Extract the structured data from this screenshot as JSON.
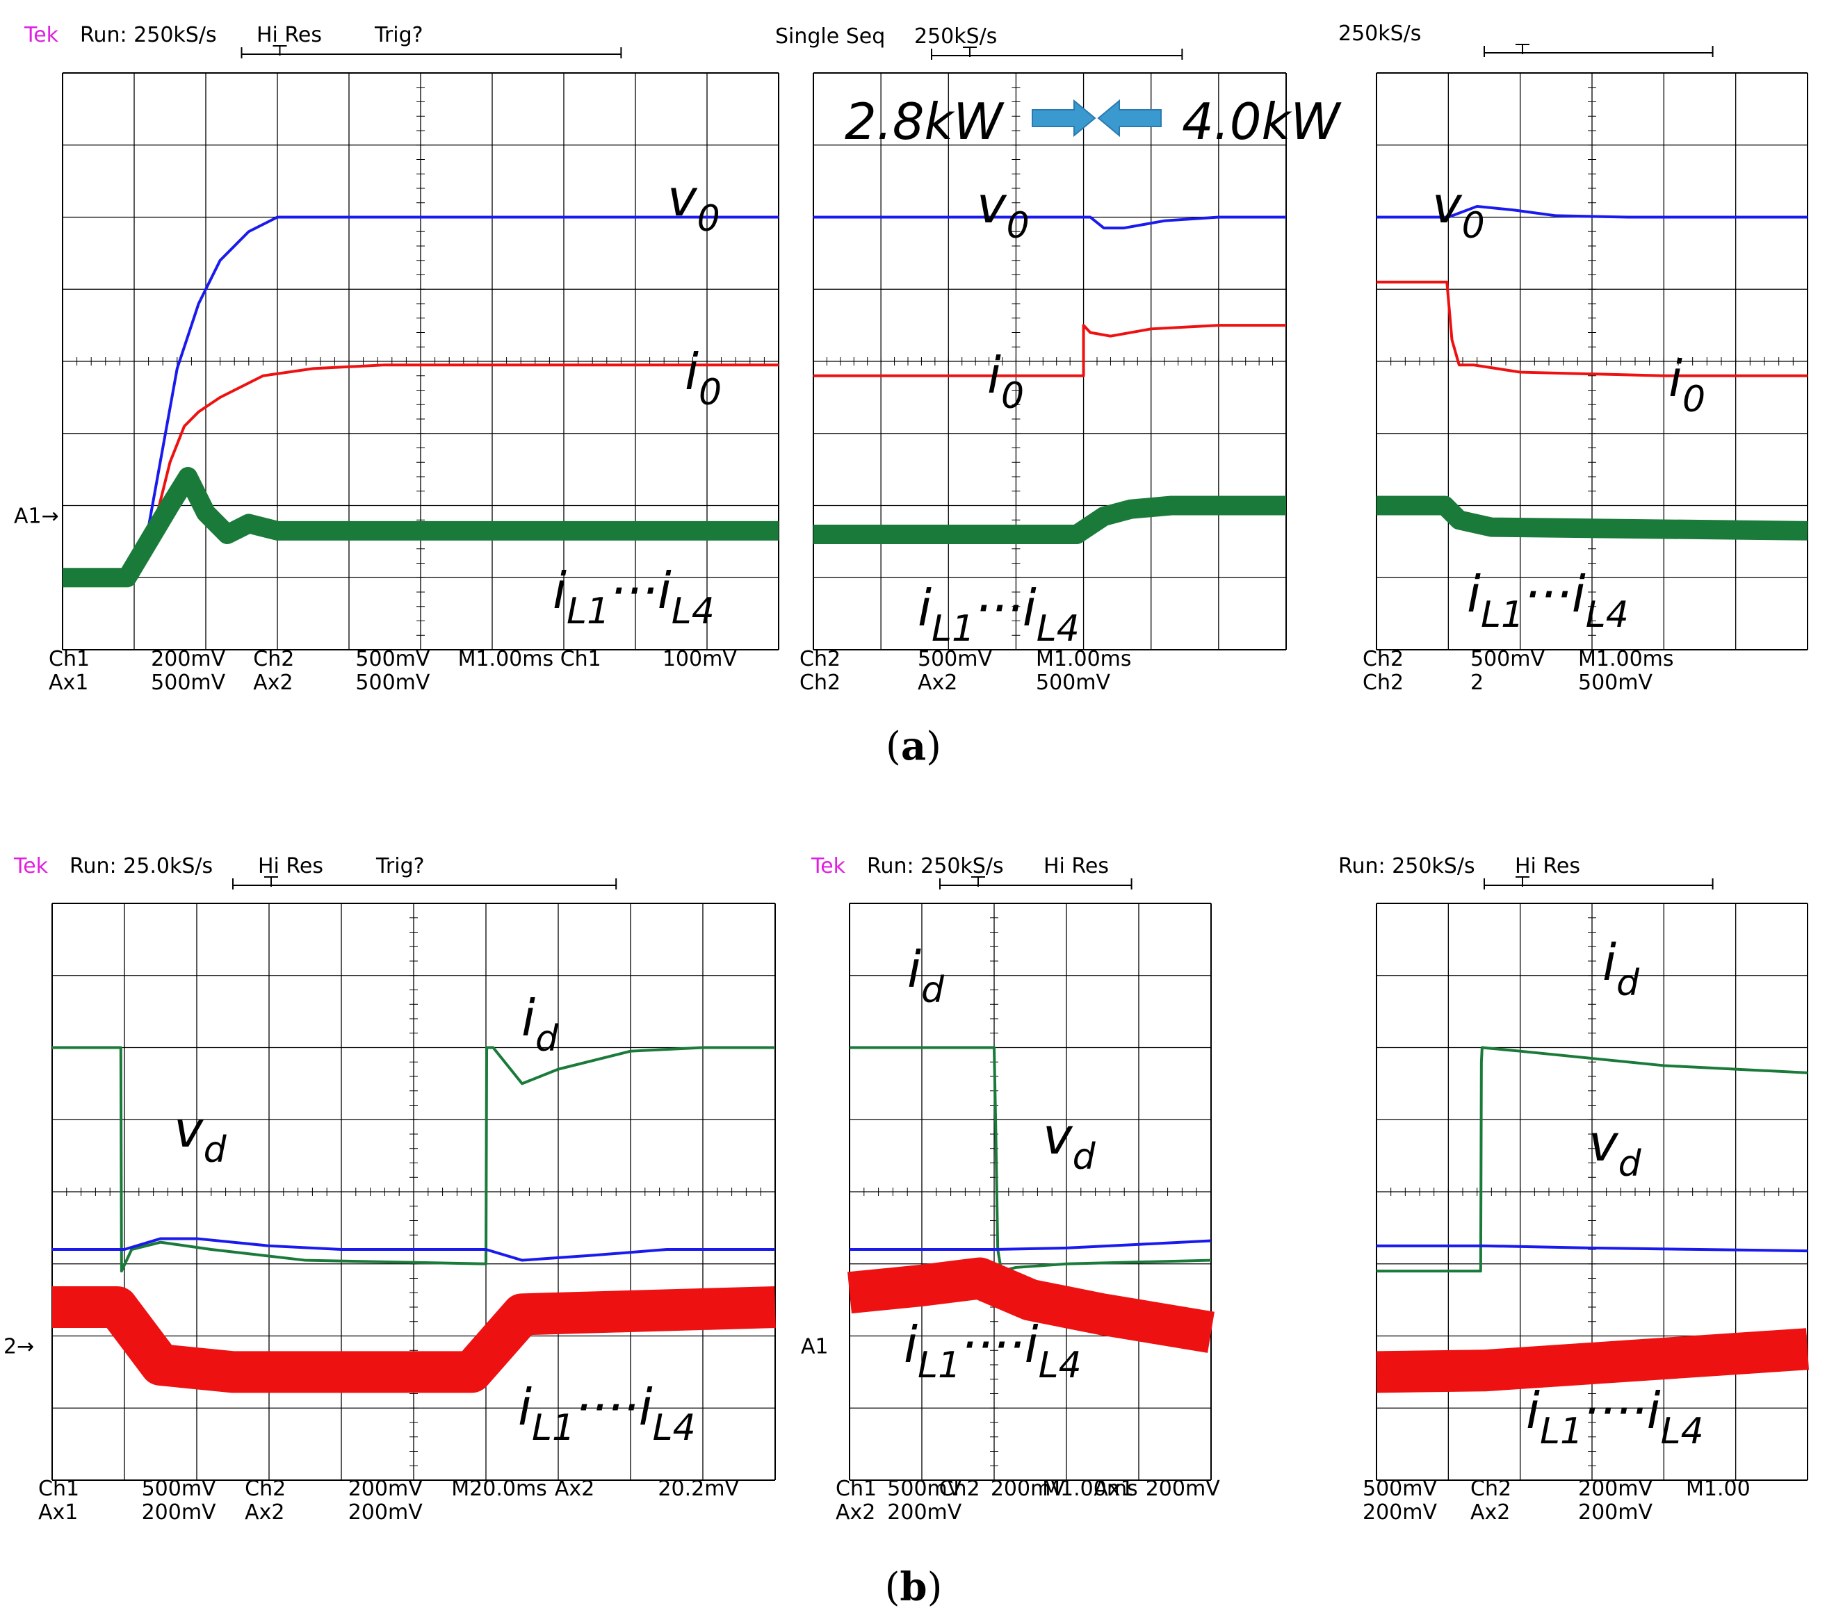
{
  "colors": {
    "blue": "#1a1aee",
    "red": "#ee1111",
    "green": "#1a7a3a",
    "green_light": "#1aaa4a",
    "black": "#000000",
    "magenta": "#e020e0",
    "cyan": "#00d0e0",
    "dark_blue": "#2a2a9a"
  },
  "captions": {
    "a": "a",
    "b": "b"
  },
  "power_labels": {
    "left": "2.8kW",
    "right": "4.0kW"
  },
  "panels": [
    {
      "id": "a1",
      "header": {
        "tek": "Tek",
        "run": "Run: 250kS/s",
        "mode": "Hi Res",
        "trig": "Trig?"
      },
      "footer": [
        {
          "text": "Ch1",
          "color": "blue"
        },
        {
          "text": "200mV",
          "color": "blue"
        },
        {
          "text": "Ch2",
          "color": "green_light"
        },
        {
          "text": "500mV",
          "color": "green_light"
        },
        {
          "text": "M1.00ms",
          "color": "black"
        },
        {
          "text": "Ch1",
          "color": "black"
        },
        {
          "text": "100mV",
          "color": "black"
        },
        {
          "text": "Ax1",
          "color": "red"
        },
        {
          "text": "500mV",
          "color": "red"
        },
        {
          "text": "Ax2",
          "color": "black"
        },
        {
          "text": "500mV",
          "color": "black"
        }
      ],
      "marker": "A1→",
      "labels": {
        "v": "v",
        "v_sub": "0",
        "i": "i",
        "i_sub": "0",
        "il": "i",
        "il_sub1": "L1",
        "dots": "···",
        "il2": "i",
        "il_sub2": "L4"
      }
    },
    {
      "id": "a2",
      "header": {
        "run": "Single Seq",
        "rate": "250kS/s"
      },
      "footer": [
        {
          "text": "Ch2",
          "color": "green_light"
        },
        {
          "text": "500mV",
          "color": "green_light"
        },
        {
          "text": "M1.00ms",
          "color": "black"
        },
        {
          "text": "Ch2",
          "color": "green_light"
        },
        {
          "text": "Ax2",
          "color": "black"
        },
        {
          "text": "500mV",
          "color": "black"
        }
      ],
      "labels": {
        "v": "v",
        "v_sub": "0",
        "i": "i",
        "i_sub": "0",
        "il": "i",
        "il_sub1": "L1",
        "dots": "···",
        "il2": "i",
        "il_sub2": "L4"
      }
    },
    {
      "id": "a3",
      "header": {
        "rate": "250kS/s"
      },
      "footer": [
        {
          "text": "Ch2",
          "color": "green_light"
        },
        {
          "text": "500mV",
          "color": "green_light"
        },
        {
          "text": "M1.00ms",
          "color": "black"
        },
        {
          "text": "Ch2",
          "color": "green_light"
        },
        {
          "text": "2",
          "color": "black"
        },
        {
          "text": "500mV",
          "color": "black"
        }
      ],
      "labels": {
        "v": "v",
        "v_sub": "0",
        "i": "i",
        "i_sub": "0",
        "il": "i",
        "il_sub1": "L1",
        "dots": "···",
        "il2": "i",
        "il_sub2": "L4"
      }
    },
    {
      "id": "b1",
      "header": {
        "tek": "Tek",
        "run": "Run: 25.0kS/s",
        "mode": "Hi Res",
        "trig": "Trig?"
      },
      "footer": [
        {
          "text": "Ch1",
          "color": "blue"
        },
        {
          "text": "500mV",
          "color": "blue"
        },
        {
          "text": "Ch2",
          "color": "green_light"
        },
        {
          "text": "200mV",
          "color": "green_light"
        },
        {
          "text": "M20.0ms",
          "color": "black"
        },
        {
          "text": "Ax2",
          "color": "cyan"
        },
        {
          "text": "20.2mV",
          "color": "black"
        },
        {
          "text": "Ax1",
          "color": "red"
        },
        {
          "text": "200mV",
          "color": "red"
        },
        {
          "text": "Ax2",
          "color": "dark_blue"
        },
        {
          "text": "200mV",
          "color": "dark_blue"
        }
      ],
      "marker": "2→",
      "labels": {
        "id": "i",
        "id_sub": "d",
        "vd": "v",
        "vd_sub": "d",
        "il": "i",
        "il_sub1": "L1",
        "dots": "····",
        "il2": "i",
        "il_sub2": "L4"
      }
    },
    {
      "id": "b2",
      "header": {
        "tek": "Tek",
        "run": "Run: 250kS/s",
        "mode": "Hi Res"
      },
      "footer": [
        {
          "text": "Ch1",
          "color": "blue"
        },
        {
          "text": "500mV",
          "color": "blue"
        },
        {
          "text": "Ch2",
          "color": "green_light"
        },
        {
          "text": "200mV",
          "color": "green_light"
        },
        {
          "text": "M1.00ms",
          "color": "black"
        },
        {
          "text": "Ax1",
          "color": "red"
        },
        {
          "text": "200mV",
          "color": "red"
        },
        {
          "text": "Ax2",
          "color": "dark_blue"
        },
        {
          "text": "200mV",
          "color": "dark_blue"
        }
      ],
      "marker": "A1",
      "labels": {
        "id": "i",
        "id_sub": "d",
        "vd": "v",
        "vd_sub": "d",
        "il": "i",
        "il_sub1": "L1",
        "dots": "····",
        "il2": "i",
        "il_sub2": "L4"
      }
    },
    {
      "id": "b3",
      "header": {
        "run": "Run: 250kS/s",
        "mode": "Hi Res"
      },
      "footer": [
        {
          "text": "500mV",
          "color": "blue"
        },
        {
          "text": "Ch2",
          "color": "green_light"
        },
        {
          "text": "200mV",
          "color": "green_light"
        },
        {
          "text": "M1.00",
          "color": "black"
        },
        {
          "text": "200mV",
          "color": "red"
        },
        {
          "text": "Ax2",
          "color": "dark_blue"
        },
        {
          "text": "200mV",
          "color": "dark_blue"
        }
      ],
      "labels": {
        "id": "i",
        "id_sub": "d",
        "vd": "v",
        "vd_sub": "d",
        "il": "i",
        "il_sub1": "L1",
        "dots": "····",
        "il2": "i",
        "il_sub2": "L4"
      }
    }
  ],
  "chart_data": [
    {
      "type": "line",
      "panel": "a1",
      "xlim": [
        0,
        10
      ],
      "ylim": [
        0,
        8
      ],
      "series": [
        {
          "color": "blue",
          "x": [
            0,
            0.9,
            1.2,
            1.6,
            1.9,
            2.0,
            2.2,
            2.6,
            3.0,
            3.5,
            4,
            10
          ],
          "y": [
            1,
            1,
            1.7,
            3.9,
            4.8,
            5.0,
            5.4,
            5.8,
            6.0,
            6.0,
            6.0,
            6.0
          ]
        },
        {
          "color": "red",
          "x": [
            0,
            0.9,
            1.2,
            1.5,
            1.7,
            1.9,
            2.2,
            2.8,
            3.5,
            4.5,
            10
          ],
          "y": [
            1,
            1,
            1.4,
            2.6,
            3.1,
            3.3,
            3.5,
            3.8,
            3.9,
            3.95,
            3.95
          ]
        },
        {
          "color": "green",
          "x": [
            0,
            0.9,
            1.2,
            1.5,
            1.75,
            2.0,
            2.3,
            2.6,
            3.0,
            10
          ],
          "y": [
            1,
            1,
            1.5,
            2.0,
            2.4,
            1.9,
            1.6,
            1.75,
            1.65,
            1.65
          ]
        }
      ]
    },
    {
      "type": "line",
      "panel": "a2",
      "xlim": [
        0,
        7
      ],
      "ylim": [
        0,
        8
      ],
      "series": [
        {
          "color": "blue",
          "x": [
            0,
            4,
            4.1,
            4.3,
            4.6,
            5.2,
            6,
            7
          ],
          "y": [
            6.0,
            6.0,
            6.0,
            5.85,
            5.85,
            5.95,
            6.0,
            6.0
          ]
        },
        {
          "color": "red",
          "x": [
            0,
            4,
            4.0,
            4.1,
            4.4,
            5,
            6,
            7
          ],
          "y": [
            3.8,
            3.8,
            4.5,
            4.4,
            4.35,
            4.45,
            4.5,
            4.5
          ]
        },
        {
          "color": "green",
          "x": [
            0,
            3.9,
            4.3,
            4.7,
            5.3,
            7
          ],
          "y": [
            1.6,
            1.6,
            1.85,
            1.95,
            2.0,
            2.0
          ]
        }
      ]
    },
    {
      "type": "line",
      "panel": "a3",
      "xlim": [
        0,
        6
      ],
      "ylim": [
        0,
        8
      ],
      "series": [
        {
          "color": "blue",
          "x": [
            0,
            1.0,
            1.4,
            1.9,
            2.5,
            3.5,
            6
          ],
          "y": [
            6.0,
            6.0,
            6.15,
            6.1,
            6.02,
            6.0,
            6.0
          ]
        },
        {
          "color": "red",
          "x": [
            0,
            0.98,
            1.05,
            1.15,
            1.35,
            2,
            4,
            6
          ],
          "y": [
            5.1,
            5.1,
            4.3,
            3.95,
            3.95,
            3.85,
            3.8,
            3.8
          ]
        },
        {
          "color": "green",
          "x": [
            0,
            0.95,
            1.15,
            1.6,
            6
          ],
          "y": [
            2.0,
            2.0,
            1.8,
            1.7,
            1.65
          ]
        }
      ]
    },
    {
      "type": "line",
      "panel": "b1",
      "xlim": [
        0,
        10
      ],
      "ylim": [
        0,
        8
      ],
      "series": [
        {
          "color": "green",
          "x": [
            0,
            0.95,
            0.96,
            1.1,
            1.5,
            2.2,
            3.5,
            6.0,
            6.01,
            6.1,
            6.5,
            7.0,
            8.0,
            9.0,
            10
          ],
          "y": [
            6.0,
            6.0,
            2.9,
            3.2,
            3.3,
            3.2,
            3.05,
            3.0,
            6.0,
            6.0,
            5.5,
            5.7,
            5.95,
            6.0,
            6.0
          ]
        },
        {
          "color": "blue",
          "x": [
            0,
            1,
            1.5,
            2,
            3,
            4,
            6,
            6.5,
            7.5,
            8.5,
            10
          ],
          "y": [
            3.2,
            3.2,
            3.35,
            3.35,
            3.25,
            3.2,
            3.2,
            3.05,
            3.12,
            3.2,
            3.2
          ]
        },
        {
          "color": "red",
          "x": [
            0,
            0.9,
            1.5,
            2.5,
            5.8,
            6.5,
            10
          ],
          "y": [
            2.4,
            2.4,
            1.6,
            1.5,
            1.5,
            2.3,
            2.4
          ]
        }
      ]
    },
    {
      "type": "line",
      "panel": "b2",
      "xlim": [
        0,
        5
      ],
      "ylim": [
        0,
        8
      ],
      "series": [
        {
          "color": "green",
          "x": [
            0,
            2.0,
            2.02,
            2.05,
            2.1,
            2.3,
            3.0,
            5
          ],
          "y": [
            6.0,
            6.0,
            5.0,
            3.2,
            2.9,
            2.95,
            3.0,
            3.05
          ]
        },
        {
          "color": "blue",
          "x": [
            0,
            2,
            3,
            4,
            5
          ],
          "y": [
            3.2,
            3.2,
            3.22,
            3.27,
            3.32
          ]
        },
        {
          "color": "red",
          "x": [
            0,
            1,
            1.8,
            2.5,
            3.5,
            5
          ],
          "y": [
            2.6,
            2.7,
            2.8,
            2.5,
            2.3,
            2.05
          ]
        }
      ]
    },
    {
      "type": "line",
      "panel": "b3",
      "xlim": [
        0,
        6
      ],
      "ylim": [
        0,
        8
      ],
      "series": [
        {
          "color": "green",
          "x": [
            0,
            1.45,
            1.46,
            1.47,
            2,
            3,
            4,
            6
          ],
          "y": [
            2.9,
            2.9,
            5.8,
            6.0,
            5.95,
            5.85,
            5.75,
            5.65
          ]
        },
        {
          "color": "blue",
          "x": [
            0,
            1.5,
            3,
            4.5,
            6
          ],
          "y": [
            3.25,
            3.25,
            3.22,
            3.2,
            3.18
          ]
        },
        {
          "color": "red",
          "x": [
            0,
            1.5,
            3,
            6
          ],
          "y": [
            1.5,
            1.52,
            1.62,
            1.82
          ]
        }
      ]
    }
  ]
}
